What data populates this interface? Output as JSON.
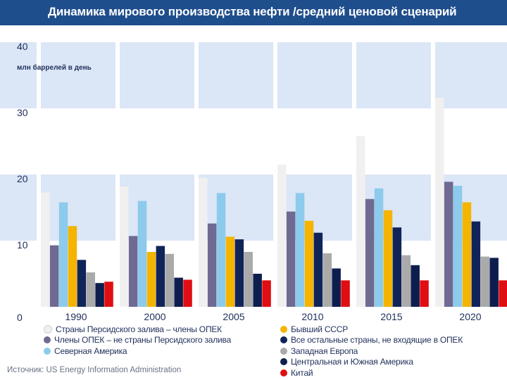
{
  "header": {
    "title": "Динамика мирового производства нефти /средний ценовой сценарий"
  },
  "chart_data": {
    "type": "bar",
    "title": "Динамика мирового производства нефти /средний ценовой сценарий",
    "ylabel": "млн баррелей в день",
    "xlabel": "",
    "ylim": [
      0,
      40
    ],
    "yticks": [
      0,
      10,
      20,
      30,
      40
    ],
    "categories": [
      "1990",
      "2000",
      "2005",
      "2010",
      "2015",
      "2020"
    ],
    "series": [
      {
        "name": "Страны Персидского залива – члены ОПЕК",
        "color": "#f0f0f0",
        "values": [
          17.3,
          18.2,
          19.5,
          21.5,
          25.8,
          31.6
        ]
      },
      {
        "name": "Члены ОПЕК – не страны Персидского залива",
        "color": "#6e6a92",
        "values": [
          9.3,
          10.7,
          12.6,
          14.4,
          16.3,
          18.9
        ]
      },
      {
        "name": "Северная Америка",
        "color": "#8ccbeb",
        "values": [
          15.8,
          16.0,
          17.2,
          17.2,
          17.9,
          18.3
        ]
      },
      {
        "name": "Бывший СССР",
        "color": "#f4b400",
        "values": [
          12.2,
          8.3,
          10.6,
          13.0,
          14.6,
          15.8
        ]
      },
      {
        "name": "Все остальные страны, не входящие в ОПЕК",
        "color": "#11245a",
        "values": [
          7.1,
          9.2,
          10.2,
          11.2,
          12.0,
          12.9
        ]
      },
      {
        "name": "Западная Европа",
        "color": "#aaaaaa",
        "values": [
          5.2,
          8.0,
          8.3,
          8.1,
          7.8,
          7.6
        ]
      },
      {
        "name": "Центральная и Южная Америка",
        "color": "#0d1e4e",
        "values": [
          3.6,
          4.4,
          5.0,
          5.8,
          6.3,
          7.4
        ]
      },
      {
        "name": "Китай",
        "color": "#e00e12",
        "values": [
          3.8,
          4.1,
          4.0,
          4.0,
          4.0,
          4.0
        ]
      }
    ],
    "legend_position": "bottom"
  },
  "legend": {
    "columns": [
      [
        "Страны Персидского залива – члены ОПЕК",
        "Члены ОПЕК – не страны Персидского залива",
        "Северная Америка"
      ],
      [
        "Бывший СССР",
        "Все остальные страны, не входящие в ОПЕК",
        "Западная Европа",
        "Центральная и Южная Америка",
        "Китай"
      ]
    ]
  },
  "footer": {
    "source": "Источник: US Energy Information Administration"
  },
  "colors": {
    "header_bg": "#1f4e8c",
    "band": "#dbe6f6",
    "grid": "#ffffff",
    "text": "#1f2f5a"
  }
}
